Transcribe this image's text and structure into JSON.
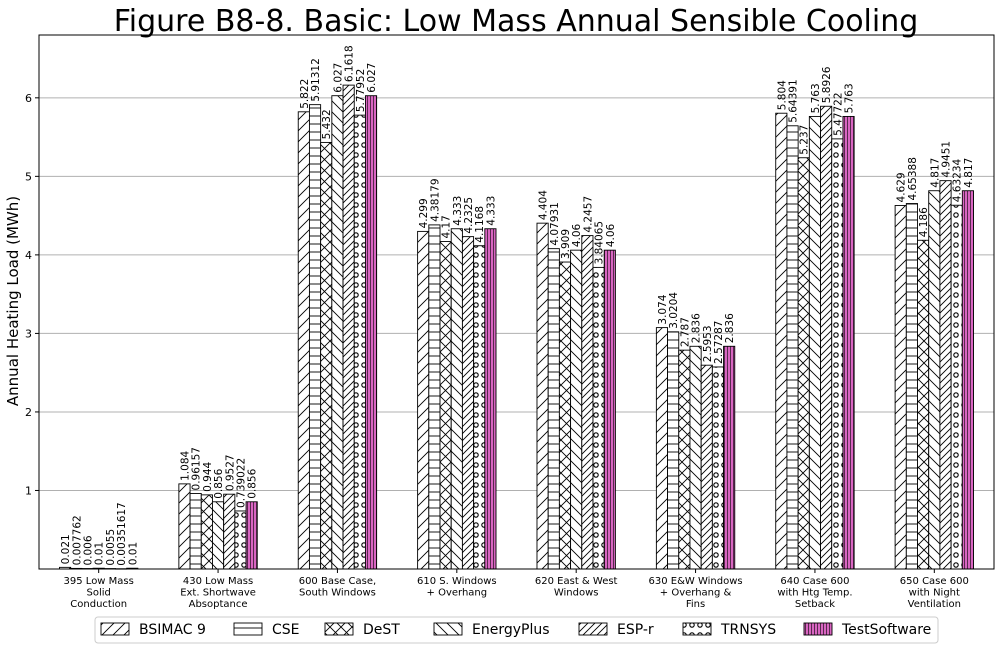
{
  "chart_data": {
    "type": "bar",
    "title": "Figure B8-8.  Basic: Low Mass Annual Sensible Cooling",
    "xlabel": "",
    "ylabel": "Annual Heating Load (MWh)",
    "ylim": [
      0,
      6.8
    ],
    "yticks": [
      1,
      2,
      3,
      4,
      5,
      6
    ],
    "grid": "horizontal",
    "legend_position": "bottom",
    "categories": [
      [
        "395 Low Mass",
        "Solid",
        "Conduction"
      ],
      [
        "430 Low Mass",
        "Ext. Shortwave",
        "Absoptance"
      ],
      [
        "600 Base Case,",
        "South Windows"
      ],
      [
        "610 S. Windows",
        "+ Overhang"
      ],
      [
        "620 East & West",
        "Windows"
      ],
      [
        "630 E&W Windows",
        "+ Overhang &",
        "Fins"
      ],
      [
        "640 Case 600",
        "with Htg Temp.",
        "Setback"
      ],
      [
        "650 Case 600",
        "with Night",
        "Ventilation"
      ]
    ],
    "series": [
      {
        "name": "BSIMAC 9",
        "pattern": "diag-fwd",
        "color": "#ffffff",
        "values": [
          0.021,
          1.084,
          5.822,
          4.299,
          4.404,
          3.074,
          5.804,
          4.629
        ],
        "labels": [
          "0.021",
          "1.084",
          "5.822",
          "4.299",
          "4.404",
          "3.074",
          "5.804",
          "4.629"
        ]
      },
      {
        "name": "CSE",
        "pattern": "horiz",
        "color": "#ffffff",
        "values": [
          0.007762,
          0.96157,
          5.91312,
          4.38179,
          4.07931,
          3.0204,
          5.64391,
          4.65388
        ],
        "labels": [
          "0.007762",
          "0.96157",
          "5.91312",
          "4.38179",
          "4.07931",
          "3.0204",
          "5.64391",
          "4.65388"
        ]
      },
      {
        "name": "DeST",
        "pattern": "cross",
        "color": "#ffffff",
        "values": [
          0.006,
          0.944,
          5.432,
          4.17,
          3.909,
          2.787,
          5.237,
          4.186
        ],
        "labels": [
          "0.006",
          "0.944",
          "5.432",
          "4.17",
          "3.909",
          "2.787",
          "5.237",
          "4.186"
        ]
      },
      {
        "name": "EnergyPlus",
        "pattern": "diag-back",
        "color": "#ffffff",
        "values": [
          0.01,
          0.856,
          6.027,
          4.333,
          4.06,
          2.836,
          5.763,
          4.817
        ],
        "labels": [
          "0.01",
          "0.856",
          "6.027",
          "4.333",
          "4.06",
          "2.836",
          "5.763",
          "4.817"
        ]
      },
      {
        "name": "ESP-r",
        "pattern": "diag-fwd-dense",
        "color": "#ffffff",
        "values": [
          0.0055,
          0.9527,
          6.1618,
          4.2325,
          4.2457,
          2.5953,
          5.8926,
          4.9451
        ],
        "labels": [
          "0.0055",
          "0.9527",
          "6.1618",
          "4.2325",
          "4.2457",
          "2.5953",
          "5.8926",
          "4.9451"
        ]
      },
      {
        "name": "TRNSYS",
        "pattern": "circles",
        "color": "#ffffff",
        "values": [
          0.00351617,
          0.739022,
          5.77952,
          4.1168,
          3.84065,
          2.57287,
          5.47722,
          4.63234
        ],
        "labels": [
          "0.00351617",
          "0.739022",
          "5.77952",
          "4.1168",
          "3.84065",
          "2.57287",
          "5.47722",
          "4.63234"
        ]
      },
      {
        "name": "TestSoftware",
        "pattern": "vert",
        "color": "#d966c2",
        "values": [
          0.01,
          0.856,
          6.027,
          4.333,
          4.06,
          2.836,
          5.763,
          4.817
        ],
        "labels": [
          "0.01",
          "0.856",
          "6.027",
          "4.333",
          "4.06",
          "2.836",
          "5.763",
          "4.817"
        ]
      }
    ]
  }
}
